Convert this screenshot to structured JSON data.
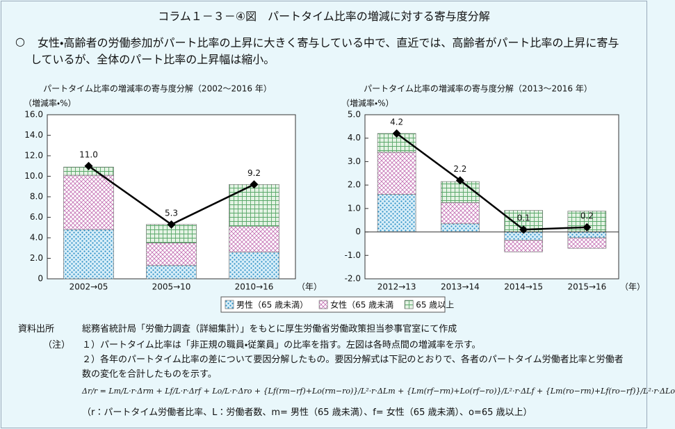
{
  "header": {
    "title": "コラム１－３－④図　パートタイム比率の増減に対する寄与度分解",
    "bullet": "○",
    "summary": "女性・高齢者の労働参加がパート比率の上昇に大きく寄与している中で、直近では、高齢者がパート比率の上昇に寄与しているが、全体のパート比率の上昇幅は縮小。"
  },
  "chart_data": [
    {
      "type": "bar",
      "stacked": true,
      "title": "パートタイム比率の増減率の寄与度分解（2002〜2016 年）",
      "ylabel": "（増減率・%）",
      "xlabel": "（年）",
      "categories": [
        "2002→05",
        "2005→10",
        "2010→16"
      ],
      "ylim": [
        0,
        16
      ],
      "yticks": [
        0,
        {
          "value": 2,
          "label": "2.0"
        },
        {
          "value": 4,
          "label": "4.0"
        },
        {
          "value": 6,
          "label": "6.0"
        },
        {
          "value": 8,
          "label": "8.0"
        },
        {
          "value": 10,
          "label": "10.0"
        },
        {
          "value": 12,
          "label": "12.0"
        },
        {
          "value": 14,
          "label": "14.0"
        },
        {
          "value": 16,
          "label": "16.0"
        }
      ],
      "series": [
        {
          "name": "男性（65 歳未満）",
          "color": "#2b8fc6",
          "pattern": "dots",
          "values": [
            4.8,
            1.3,
            2.6
          ]
        },
        {
          "name": "女性（65 歳未満",
          "color": "#c36fb3",
          "pattern": "cross",
          "values": [
            5.3,
            2.2,
            2.5
          ]
        },
        {
          "name": "65 歳以上",
          "color": "#5aa86a",
          "pattern": "grid",
          "values": [
            0.8,
            1.8,
            4.1
          ]
        }
      ],
      "totals": {
        "color": "#000000",
        "values": [
          11.0,
          5.3,
          9.2
        ],
        "value_labels": [
          "11.0",
          "5.3",
          "9.2"
        ]
      }
    },
    {
      "type": "bar",
      "stacked": true,
      "title": "パートタイム比率の増減率の寄与度分解（2013〜2016 年）",
      "ylabel": "（増減率・%）",
      "xlabel": "（年）",
      "categories": [
        "2012→13",
        "2013→14",
        "2014→15",
        "2015→16"
      ],
      "ylim": [
        -2,
        5
      ],
      "yticks": [
        {
          "value": -2,
          "label": "-2.0"
        },
        {
          "value": -1,
          "label": "-1.0"
        },
        0,
        {
          "value": 1,
          "label": "1.0"
        },
        {
          "value": 2,
          "label": "2.0"
        },
        {
          "value": 3,
          "label": "3.0"
        },
        {
          "value": 4,
          "label": "4.0"
        },
        {
          "value": 5,
          "label": "5.0"
        }
      ],
      "series": [
        {
          "color": "#2b8fc6",
          "pattern": "dots",
          "values": [
            1.6,
            0.35,
            -0.35,
            -0.25
          ]
        },
        {
          "color": "#c36fb3",
          "pattern": "cross",
          "values": [
            1.8,
            0.9,
            -0.5,
            -0.45
          ]
        },
        {
          "color": "#5aa86a",
          "pattern": "grid",
          "values": [
            0.8,
            0.9,
            0.92,
            0.89
          ]
        }
      ],
      "totals": {
        "color": "#000000",
        "values": [
          4.2,
          2.2,
          0.1,
          0.2
        ]
      }
    }
  ],
  "notes": {
    "source_label": "資料出所",
    "source": "総務省統計局「労働力調査（詳細集計）」をもとに厚生労働省労働政策担当参事官室にて作成",
    "note_label": "（注）",
    "items": [
      "１）パートタイム比率は「非正規の職員・従業員」の比率を指す。左図は各時点間の増減率を示す。",
      "２）各年のパートタイム比率の差について要因分解したもの。要因分解式は下記のとおりで、各者のパートタイム労働者比率と労働者数の変化を合計したものを示す。"
    ],
    "formula": "Δr/r = Lm/L·r·Δrm + Lf/L·r·Δrf + Lo/L·r·Δro + {Lf(rm−rf)+Lo(rm−ro)}/L²·r·ΔLm + {Lm(rf−rm)+Lo(rf−ro)}/L²·r·ΔLf + {Lm(ro−rm)+Lf(ro−rf)}/L²·r·ΔLo",
    "symbols": "（r：パートタイム労働者比率、L：労働者数、m= 男性（65 歳未満）、f= 女性（65 歳未満）、o=65 歳以上）"
  }
}
